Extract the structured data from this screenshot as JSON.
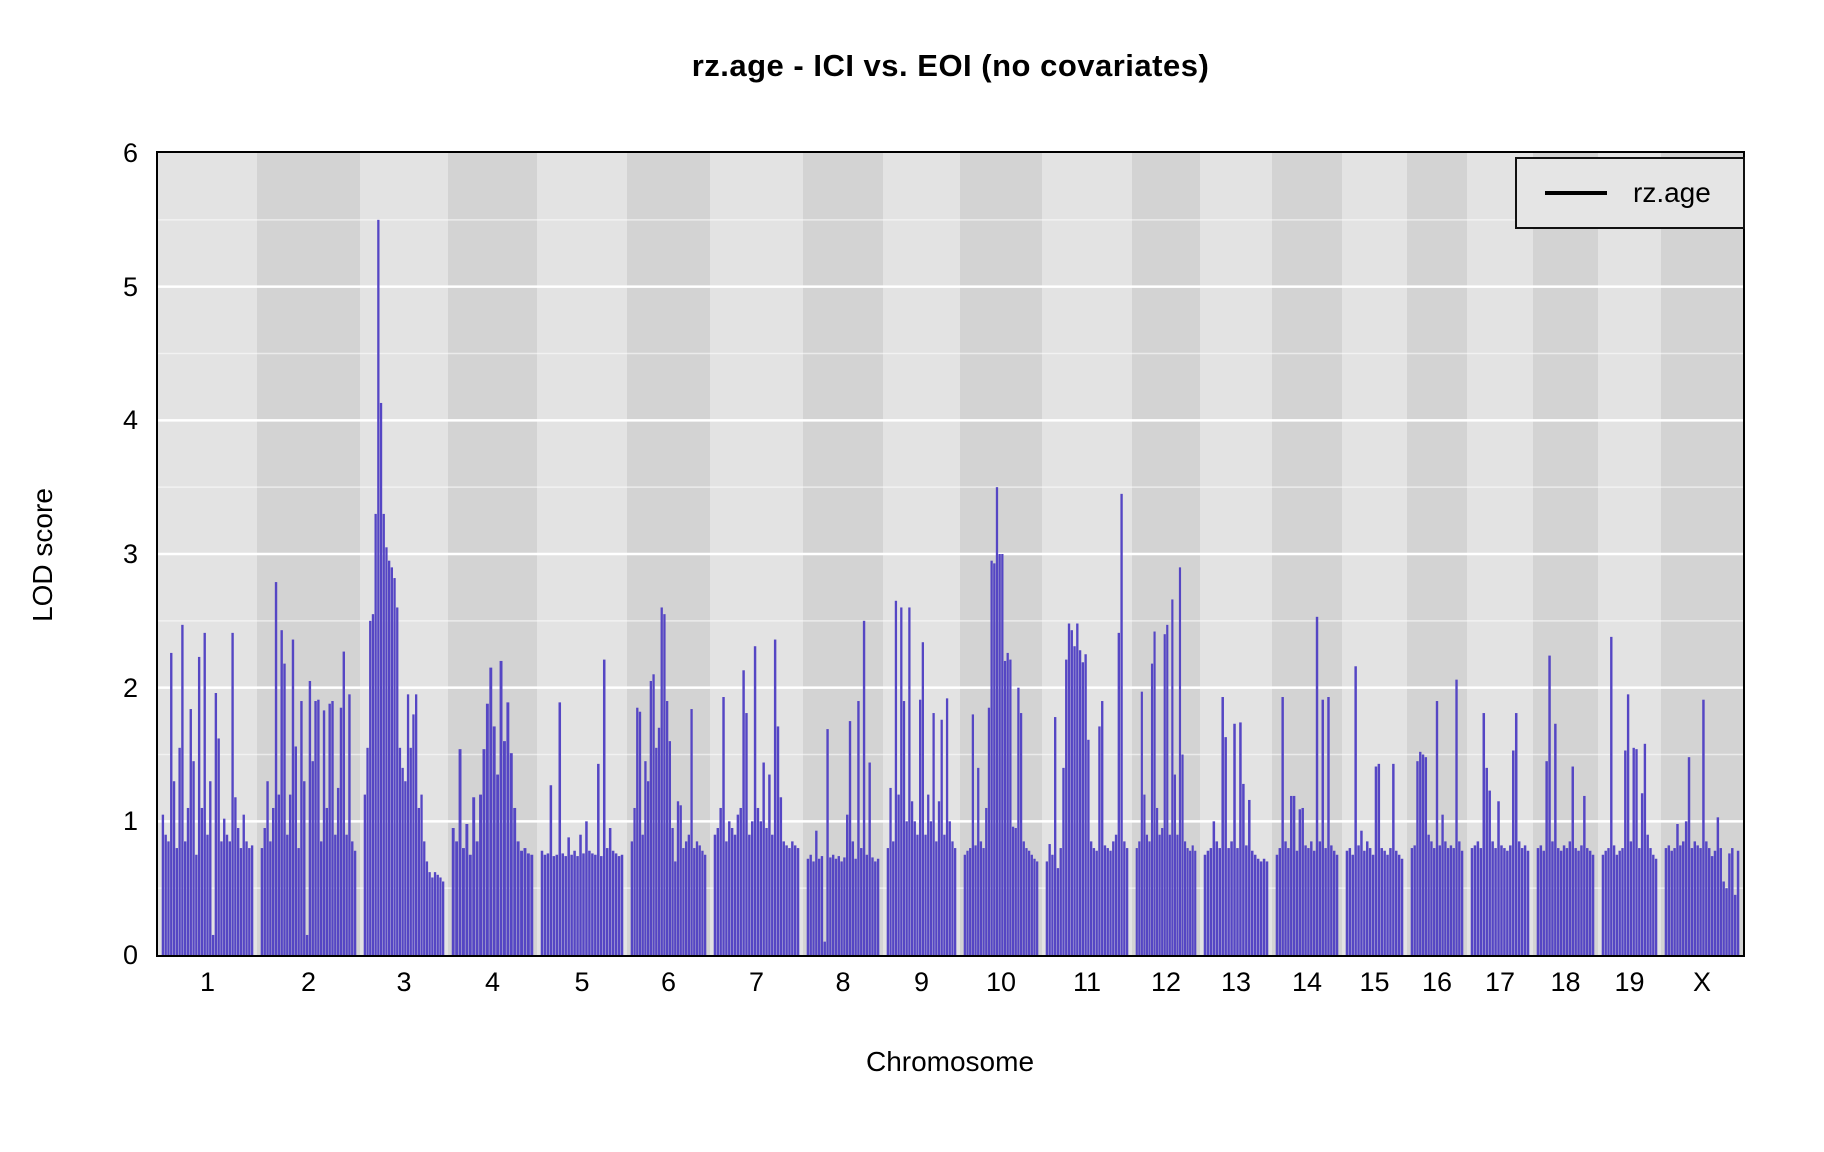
{
  "title": "rz.age - ICI vs. EOI (no covariates)",
  "axes": {
    "x_label": "Chromosome",
    "y_label": "LOD score",
    "y_ticks": [
      "0",
      "1",
      "2",
      "3",
      "4",
      "5",
      "6"
    ]
  },
  "legend": {
    "label": "rz.age"
  },
  "colors": {
    "series": "#5546c4",
    "band_light": "#e3e3e3",
    "band_dark": "#d3d3d3",
    "grid_major": "#ffffff",
    "grid_minor": "#ffffff",
    "legend_bg": "#e5e5e5",
    "border": "#000000"
  },
  "chart_data": {
    "type": "area",
    "title": "rz.age - ICI vs. EOI (no covariates)",
    "xlabel": "Chromosome",
    "ylabel": "LOD score",
    "ylim": [
      0,
      6
    ],
    "y_major_ticks": [
      0,
      1,
      2,
      3,
      4,
      5,
      6
    ],
    "grid": "white major gridlines at integers, faint minor at halves, on alternating gray chromosome bands",
    "legend_position": "top-right",
    "legend_entries": [
      "rz.age"
    ],
    "series_color": "#5546c4",
    "max_lod": 5.5,
    "max_lod_chromosome": "3",
    "notable_peaks": {
      "1": 2.47,
      "2": 2.79,
      "3": 5.5,
      "4": 2.2,
      "5": 2.21,
      "6": 2.6,
      "7": 2.36,
      "8": 2.5,
      "9": 2.65,
      "10": 3.5,
      "11": 3.45,
      "12": 2.9,
      "13": 1.93,
      "14": 2.53,
      "15": 2.16,
      "16": 2.06,
      "17": 1.81,
      "18": 2.24,
      "19": 2.38,
      "X": 1.91
    },
    "chromosomes": [
      {
        "label": "1",
        "span": 99,
        "lod": [
          1.05,
          0.9,
          0.85,
          2.26,
          1.3,
          0.8,
          1.55,
          2.47,
          0.85,
          1.1,
          1.84,
          1.45,
          0.75,
          2.23,
          1.1,
          2.41,
          0.9,
          1.3,
          0.15,
          1.96,
          1.62,
          0.85,
          1.02,
          0.9,
          0.85,
          2.41,
          1.18,
          0.95,
          0.8,
          1.05,
          0.85,
          0.8,
          0.82
        ]
      },
      {
        "label": "2",
        "span": 103,
        "lod": [
          0.8,
          0.95,
          1.3,
          0.85,
          1.1,
          2.79,
          1.2,
          2.43,
          2.18,
          0.9,
          1.2,
          2.36,
          1.56,
          0.8,
          1.9,
          1.3,
          0.15,
          2.05,
          1.45,
          1.9,
          1.91,
          0.85,
          1.83,
          1.1,
          1.88,
          1.9,
          0.9,
          1.25,
          1.85,
          2.27,
          0.9,
          1.95,
          0.85,
          0.78
        ]
      },
      {
        "label": "3",
        "span": 88,
        "lod": [
          1.2,
          1.55,
          2.5,
          2.55,
          3.3,
          5.5,
          4.13,
          3.3,
          3.05,
          2.95,
          2.9,
          2.82,
          2.6,
          1.55,
          1.4,
          1.3,
          1.95,
          1.55,
          1.8,
          1.95,
          1.1,
          1.2,
          0.85,
          0.7,
          0.62,
          0.58,
          0.62,
          0.6,
          0.58,
          0.55
        ]
      },
      {
        "label": "4",
        "span": 89,
        "lod": [
          0.95,
          0.85,
          1.54,
          0.8,
          0.98,
          0.75,
          1.18,
          0.85,
          1.2,
          1.54,
          1.88,
          2.15,
          1.71,
          1.35,
          2.2,
          1.6,
          1.89,
          1.51,
          1.1,
          0.85,
          0.78,
          0.8,
          0.76,
          0.75
        ]
      },
      {
        "label": "5",
        "span": 90,
        "lod": [
          0.78,
          0.75,
          0.76,
          1.27,
          0.74,
          0.75,
          1.89,
          0.76,
          0.74,
          0.88,
          0.75,
          0.78,
          0.74,
          0.9,
          0.76,
          1.0,
          0.78,
          0.76,
          0.75,
          1.43,
          0.74,
          2.21,
          0.8,
          0.95,
          0.78,
          0.76,
          0.74,
          0.75
        ]
      },
      {
        "label": "6",
        "span": 83,
        "lod": [
          0.85,
          1.1,
          1.85,
          1.82,
          0.9,
          1.45,
          1.3,
          2.05,
          2.1,
          1.55,
          1.7,
          2.6,
          2.55,
          1.9,
          1.6,
          0.95,
          0.7,
          1.15,
          1.12,
          0.8,
          0.85,
          0.9,
          1.84,
          0.8,
          0.85,
          0.82,
          0.78,
          0.75
        ]
      },
      {
        "label": "7",
        "span": 93,
        "lod": [
          0.9,
          0.95,
          1.1,
          1.93,
          0.85,
          1.0,
          0.95,
          0.9,
          1.05,
          1.1,
          2.13,
          1.81,
          0.9,
          1.0,
          2.31,
          1.1,
          1.0,
          1.44,
          0.95,
          1.35,
          0.9,
          2.36,
          1.71,
          1.18,
          0.85,
          0.82,
          0.8,
          0.85,
          0.82,
          0.8
        ]
      },
      {
        "label": "8",
        "span": 80,
        "lod": [
          0.72,
          0.75,
          0.7,
          0.93,
          0.72,
          0.74,
          0.1,
          1.69,
          0.73,
          0.75,
          0.72,
          0.74,
          0.7,
          0.73,
          1.05,
          1.75,
          0.85,
          0.72,
          1.9,
          0.8,
          2.5,
          0.75,
          1.44,
          0.73,
          0.7,
          0.72
        ]
      },
      {
        "label": "9",
        "span": 77,
        "lod": [
          0.8,
          1.25,
          0.85,
          2.65,
          1.2,
          2.6,
          1.9,
          1.0,
          2.6,
          1.15,
          1.0,
          0.9,
          1.91,
          2.34,
          0.9,
          1.2,
          1.0,
          1.81,
          0.85,
          1.15,
          1.76,
          0.9,
          1.92,
          1.0,
          0.85,
          0.8
        ]
      },
      {
        "label": "10",
        "span": 82,
        "lod": [
          0.75,
          0.78,
          0.8,
          1.8,
          0.82,
          1.4,
          0.85,
          0.8,
          1.1,
          1.85,
          2.95,
          2.93,
          3.5,
          3.0,
          3.0,
          2.2,
          2.26,
          2.21,
          0.96,
          0.95,
          2.0,
          1.81,
          0.85,
          0.8,
          0.78,
          0.75,
          0.72,
          0.7
        ]
      },
      {
        "label": "11",
        "span": 90,
        "lod": [
          0.7,
          0.83,
          0.75,
          1.78,
          0.65,
          0.8,
          1.4,
          2.21,
          2.48,
          2.43,
          2.31,
          2.48,
          2.28,
          2.19,
          2.25,
          1.61,
          0.85,
          0.8,
          0.78,
          1.71,
          1.9,
          0.82,
          0.8,
          0.78,
          0.85,
          0.9,
          2.41,
          3.45,
          0.85,
          0.8
        ]
      },
      {
        "label": "12",
        "span": 68,
        "lod": [
          0.8,
          0.85,
          1.97,
          1.2,
          0.9,
          0.85,
          2.18,
          2.42,
          1.1,
          0.9,
          0.95,
          2.4,
          2.47,
          0.9,
          2.66,
          1.35,
          0.9,
          2.9,
          1.5,
          0.85,
          0.8,
          0.78,
          0.82,
          0.78
        ]
      },
      {
        "label": "13",
        "span": 72,
        "lod": [
          0.75,
          0.78,
          0.8,
          1.0,
          0.85,
          0.8,
          1.93,
          1.63,
          0.8,
          0.85,
          1.73,
          0.8,
          1.74,
          1.28,
          0.82,
          1.16,
          0.78,
          0.75,
          0.72,
          0.7,
          0.72,
          0.7
        ]
      },
      {
        "label": "14",
        "span": 70,
        "lod": [
          0.75,
          0.8,
          1.93,
          0.85,
          0.8,
          1.19,
          1.19,
          0.78,
          1.09,
          1.1,
          0.82,
          0.8,
          0.85,
          0.78,
          2.53,
          0.85,
          1.91,
          0.8,
          1.93,
          0.82,
          0.78,
          0.75
        ]
      },
      {
        "label": "15",
        "span": 65,
        "lod": [
          0.78,
          0.8,
          0.75,
          2.16,
          0.82,
          0.93,
          0.78,
          0.85,
          0.8,
          0.75,
          1.41,
          1.43,
          0.8,
          0.78,
          0.75,
          0.8,
          1.43,
          0.78,
          0.75,
          0.72
        ]
      },
      {
        "label": "16",
        "span": 60,
        "lod": [
          0.8,
          0.82,
          1.45,
          1.52,
          1.5,
          1.48,
          0.9,
          0.85,
          0.8,
          1.9,
          0.82,
          1.05,
          0.85,
          0.8,
          0.82,
          0.8,
          2.06,
          0.85,
          0.78
        ]
      },
      {
        "label": "17",
        "span": 66,
        "lod": [
          0.8,
          0.82,
          0.85,
          0.8,
          1.81,
          1.4,
          1.23,
          0.85,
          0.8,
          1.15,
          0.82,
          0.8,
          0.78,
          0.82,
          1.53,
          1.81,
          0.85,
          0.8,
          0.82,
          0.78
        ]
      },
      {
        "label": "18",
        "span": 65,
        "lod": [
          0.8,
          0.82,
          0.78,
          1.45,
          2.24,
          0.85,
          1.73,
          0.8,
          0.78,
          0.82,
          0.8,
          0.85,
          1.41,
          0.8,
          0.78,
          0.82,
          1.19,
          0.8,
          0.78,
          0.75
        ]
      },
      {
        "label": "19",
        "span": 63,
        "lod": [
          0.75,
          0.78,
          0.8,
          2.38,
          0.82,
          0.75,
          0.78,
          0.8,
          1.53,
          1.95,
          0.85,
          1.55,
          1.54,
          0.8,
          1.21,
          1.58,
          0.9,
          0.8,
          0.75,
          0.72
        ]
      },
      {
        "label": "X",
        "span": 82,
        "lod": [
          0.8,
          0.82,
          0.78,
          0.8,
          0.98,
          0.82,
          0.85,
          1.0,
          1.48,
          0.8,
          0.85,
          0.82,
          0.8,
          1.91,
          0.85,
          0.8,
          0.74,
          0.78,
          1.03,
          0.8,
          0.55,
          0.5,
          0.76,
          0.8,
          0.45,
          0.78
        ]
      }
    ]
  }
}
